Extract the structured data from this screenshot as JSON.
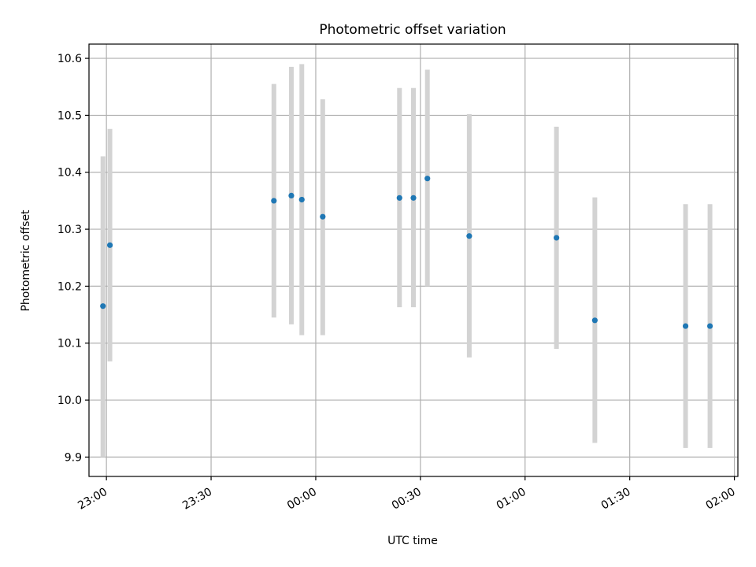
{
  "chart_data": {
    "type": "scatter",
    "title": "Photometric offset variation",
    "xlabel": "UTC time",
    "ylabel": "Photometric offset",
    "xlim": [
      "22:55",
      "02:01"
    ],
    "ylim": [
      9.866,
      10.625
    ],
    "x_ticks": [
      "23:00",
      "23:30",
      "00:00",
      "00:30",
      "01:00",
      "01:30",
      "02:00"
    ],
    "y_ticks": [
      "9.9",
      "10.0",
      "10.1",
      "10.2",
      "10.3",
      "10.4",
      "10.5",
      "10.6"
    ],
    "grid": true,
    "colors": {
      "marker": "#1f77b4",
      "errorbar": "#d3d3d3",
      "grid": "#b0b0b0"
    },
    "series": [
      {
        "points": [
          {
            "x": "22:59",
            "y": 10.165,
            "ylow": 9.9,
            "yhigh": 10.428
          },
          {
            "x": "23:01",
            "y": 10.272,
            "ylow": 10.068,
            "yhigh": 10.476
          },
          {
            "x": "23:48",
            "y": 10.35,
            "ylow": 10.145,
            "yhigh": 10.555
          },
          {
            "x": "23:53",
            "y": 10.359,
            "ylow": 10.133,
            "yhigh": 10.585
          },
          {
            "x": "23:56",
            "y": 10.352,
            "ylow": 10.114,
            "yhigh": 10.59
          },
          {
            "x": "00:02",
            "y": 10.322,
            "ylow": 10.114,
            "yhigh": 10.528
          },
          {
            "x": "00:24",
            "y": 10.355,
            "ylow": 10.163,
            "yhigh": 10.548
          },
          {
            "x": "00:28",
            "y": 10.355,
            "ylow": 10.163,
            "yhigh": 10.548
          },
          {
            "x": "00:32",
            "y": 10.389,
            "ylow": 10.2,
            "yhigh": 10.58
          },
          {
            "x": "00:44",
            "y": 10.288,
            "ylow": 10.075,
            "yhigh": 10.502
          },
          {
            "x": "01:09",
            "y": 10.285,
            "ylow": 10.09,
            "yhigh": 10.48
          },
          {
            "x": "01:20",
            "y": 10.14,
            "ylow": 9.925,
            "yhigh": 10.356
          },
          {
            "x": "01:46",
            "y": 10.13,
            "ylow": 9.916,
            "yhigh": 10.344
          },
          {
            "x": "01:53",
            "y": 10.13,
            "ylow": 9.916,
            "yhigh": 10.344
          }
        ]
      }
    ]
  }
}
